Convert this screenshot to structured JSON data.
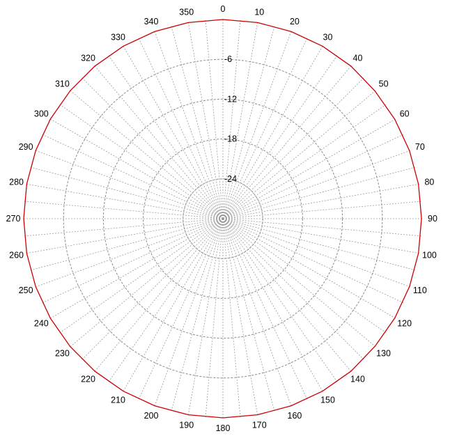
{
  "chart_data": {
    "type": "polar",
    "angular_ticks": [
      "0",
      "10",
      "20",
      "30",
      "40",
      "50",
      "60",
      "70",
      "80",
      "90",
      "100",
      "110",
      "120",
      "130",
      "140",
      "150",
      "160",
      "170",
      "180",
      "190",
      "200",
      "210",
      "220",
      "230",
      "240",
      "250",
      "260",
      "270",
      "280",
      "290",
      "300",
      "310",
      "320",
      "330",
      "340",
      "350"
    ],
    "angular_values": [
      0,
      10,
      20,
      30,
      40,
      50,
      60,
      70,
      80,
      90,
      100,
      110,
      120,
      130,
      140,
      150,
      160,
      170,
      180,
      190,
      200,
      210,
      220,
      230,
      240,
      250,
      260,
      270,
      280,
      290,
      300,
      310,
      320,
      330,
      340,
      350
    ],
    "radial_ticks": [
      "-6",
      "-12",
      "-18",
      "-24"
    ],
    "radial_values": [
      -6,
      -12,
      -18,
      -24
    ],
    "radial_range": [
      -30,
      0
    ],
    "angular_direction": "clockwise",
    "zero_angle": "top",
    "grid": true,
    "series": [
      {
        "angles": [
          0,
          10,
          20,
          30,
          40,
          50,
          60,
          70,
          80,
          90,
          100,
          110,
          120,
          130,
          140,
          150,
          160,
          170,
          180,
          190,
          200,
          210,
          220,
          230,
          240,
          250,
          260,
          270,
          280,
          290,
          300,
          310,
          320,
          330,
          340,
          350,
          360
        ],
        "values": [
          0,
          0,
          0,
          0,
          0,
          -0.1,
          -0.1,
          -0.1,
          -0.1,
          -0.1,
          -0.1,
          -0.1,
          -0.1,
          -0.1,
          0,
          0,
          0,
          0,
          0,
          0,
          0,
          0,
          0,
          0,
          0,
          0,
          0,
          0,
          0,
          0,
          0,
          0,
          0,
          0,
          0,
          0,
          0
        ],
        "color": "#cc0000"
      }
    ]
  }
}
